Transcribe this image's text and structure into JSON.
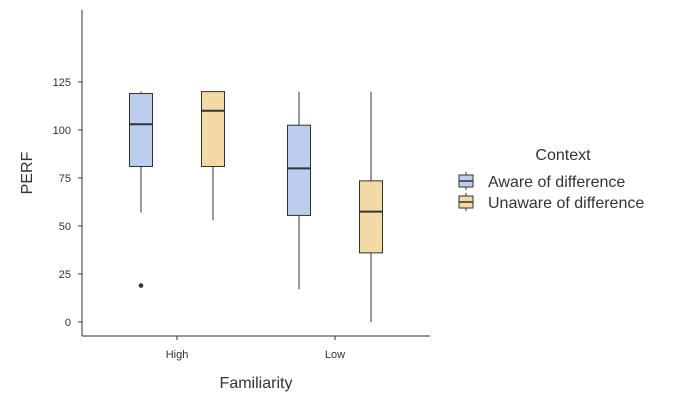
{
  "chart_data": {
    "type": "boxplot",
    "xlabel": "Familiarity",
    "ylabel": "PERF",
    "ylim": [
      -5,
      125
    ],
    "yticks": [
      0,
      25,
      50,
      75,
      100,
      125
    ],
    "categories": [
      "High",
      "Low"
    ],
    "grid": false,
    "legend": {
      "title": "Context",
      "position": "right"
    },
    "series": [
      {
        "name": "Aware of difference",
        "color": "#bccdf0",
        "boxes": [
          {
            "category": "High",
            "min": 57,
            "q1": 81,
            "median": 103,
            "q3": 119,
            "max": 120,
            "outliers": [
              19
            ]
          },
          {
            "category": "Low",
            "min": 17,
            "q1": 55.5,
            "median": 80,
            "q3": 102.5,
            "max": 120,
            "outliers": []
          }
        ]
      },
      {
        "name": "Unaware of difference",
        "color": "#f2d9a6",
        "boxes": [
          {
            "category": "High",
            "min": 53,
            "q1": 81,
            "median": 110,
            "q3": 120,
            "max": 120,
            "outliers": []
          },
          {
            "category": "Low",
            "min": 0,
            "q1": 36,
            "median": 57.5,
            "q3": 73.5,
            "max": 120,
            "outliers": []
          }
        ]
      }
    ]
  }
}
